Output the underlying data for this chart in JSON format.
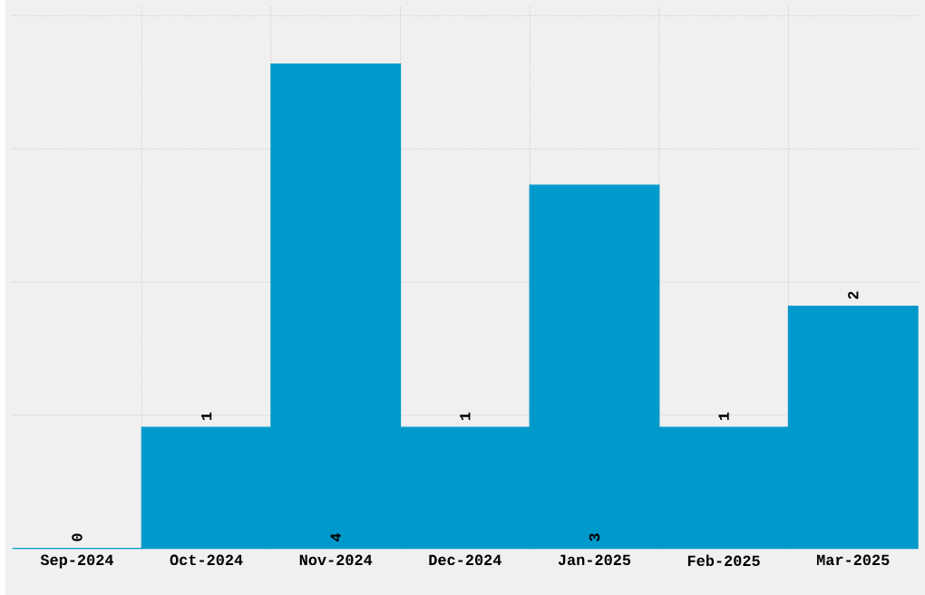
{
  "chart_data": {
    "type": "bar",
    "categories": [
      "Sep-2024",
      "Oct-2024",
      "Nov-2024",
      "Dec-2024",
      "Jan-2025",
      "Feb-2025",
      "Mar-2025"
    ],
    "values": [
      0,
      1,
      4,
      1,
      3,
      1,
      2
    ],
    "color": "#0099cc",
    "ylim": [
      0,
      4.47
    ],
    "yticks": [
      {
        "value": 1.1,
        "label": null
      },
      {
        "value": 2.2,
        "label": null
      },
      {
        "value": 3.3,
        "label": null
      },
      {
        "value": 4.4,
        "label": null
      }
    ],
    "tick_labels": "x",
    "grid": true,
    "data_labels": true
  }
}
